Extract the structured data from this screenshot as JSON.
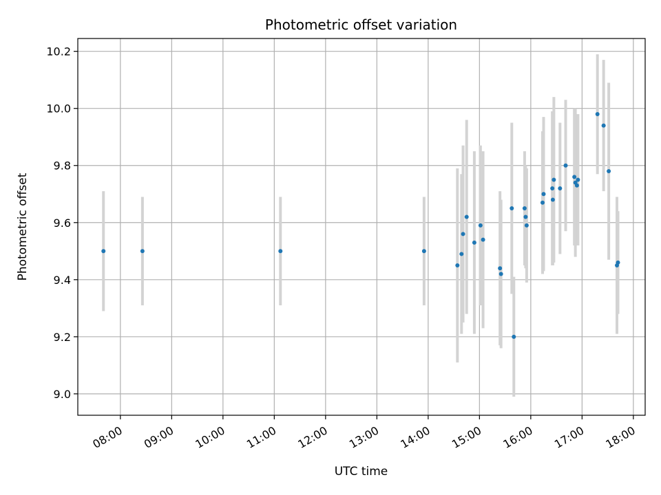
{
  "chart_data": {
    "type": "scatter",
    "title": "Photometric offset variation",
    "xlabel": "UTC time",
    "ylabel": "Photometric offset",
    "x_unit": "hour",
    "xlim": [
      7.17,
      18.23
    ],
    "ylim": [
      8.925,
      10.245
    ],
    "x_ticks": [
      8,
      9,
      10,
      11,
      12,
      13,
      14,
      15,
      16,
      17,
      18
    ],
    "x_tick_labels": [
      "08:00",
      "09:00",
      "10:00",
      "11:00",
      "12:00",
      "13:00",
      "14:00",
      "15:00",
      "16:00",
      "17:00",
      "18:00"
    ],
    "y_ticks": [
      9.0,
      9.2,
      9.4,
      9.6,
      9.8,
      10.0,
      10.2
    ],
    "y_tick_labels": [
      "9.0",
      "9.2",
      "9.4",
      "9.6",
      "9.8",
      "10.0",
      "10.2"
    ],
    "grid": true,
    "point_color": "#1f77b4",
    "errorbar_color": "#d3d3d3",
    "points": [
      {
        "x": 7.67,
        "y": 9.5,
        "err": 0.21
      },
      {
        "x": 8.43,
        "y": 9.5,
        "err": 0.19
      },
      {
        "x": 11.12,
        "y": 9.5,
        "err": 0.19
      },
      {
        "x": 13.92,
        "y": 9.5,
        "err": 0.19
      },
      {
        "x": 14.57,
        "y": 9.45,
        "err": 0.34
      },
      {
        "x": 14.65,
        "y": 9.49,
        "err": 0.28
      },
      {
        "x": 14.68,
        "y": 9.56,
        "err": 0.31
      },
      {
        "x": 14.75,
        "y": 9.62,
        "err": 0.34
      },
      {
        "x": 14.9,
        "y": 9.53,
        "err": 0.32
      },
      {
        "x": 15.02,
        "y": 9.59,
        "err": 0.28
      },
      {
        "x": 15.07,
        "y": 9.54,
        "err": 0.31
      },
      {
        "x": 15.4,
        "y": 9.44,
        "err": 0.27
      },
      {
        "x": 15.42,
        "y": 9.42,
        "err": 0.26
      },
      {
        "x": 15.63,
        "y": 9.65,
        "err": 0.3
      },
      {
        "x": 15.67,
        "y": 9.2,
        "err": 0.21
      },
      {
        "x": 15.88,
        "y": 9.65,
        "err": 0.2
      },
      {
        "x": 15.9,
        "y": 9.62,
        "err": 0.18
      },
      {
        "x": 15.92,
        "y": 9.59,
        "err": 0.2
      },
      {
        "x": 16.23,
        "y": 9.67,
        "err": 0.25
      },
      {
        "x": 16.25,
        "y": 9.7,
        "err": 0.27
      },
      {
        "x": 16.42,
        "y": 9.72,
        "err": 0.27
      },
      {
        "x": 16.43,
        "y": 9.68,
        "err": 0.23
      },
      {
        "x": 16.45,
        "y": 9.75,
        "err": 0.29
      },
      {
        "x": 16.57,
        "y": 9.72,
        "err": 0.23
      },
      {
        "x": 16.68,
        "y": 9.8,
        "err": 0.23
      },
      {
        "x": 16.85,
        "y": 9.76,
        "err": 0.24
      },
      {
        "x": 16.87,
        "y": 9.74,
        "err": 0.26
      },
      {
        "x": 16.9,
        "y": 9.73,
        "err": 0.19
      },
      {
        "x": 16.92,
        "y": 9.75,
        "err": 0.23
      },
      {
        "x": 17.3,
        "y": 9.98,
        "err": 0.21
      },
      {
        "x": 17.42,
        "y": 9.94,
        "err": 0.23
      },
      {
        "x": 17.52,
        "y": 9.78,
        "err": 0.31
      },
      {
        "x": 17.68,
        "y": 9.45,
        "err": 0.24
      },
      {
        "x": 17.7,
        "y": 9.46,
        "err": 0.18
      }
    ]
  }
}
